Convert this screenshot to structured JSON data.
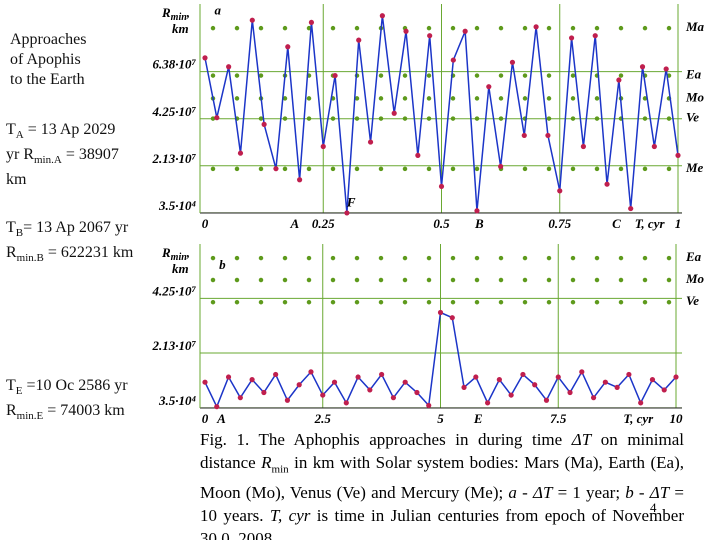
{
  "chart_data": [
    {
      "type": "line",
      "panel_label": "a",
      "y_label": [
        {
          "text": "R"
        },
        {
          "text": "min",
          "sub": true
        },
        {
          "text": ","
        }
      ],
      "y_unit": "km",
      "xlim": [
        0,
        1
      ],
      "ylim": [
        0,
        92500000.0
      ],
      "xticks": [
        0,
        0.25,
        0.5,
        0.75,
        1
      ],
      "yticks": [
        {
          "value": 35000.0,
          "label": "3.5·10⁴"
        },
        {
          "value": 21300000.0,
          "label": "2.13·10⁷"
        },
        {
          "value": 42500000.0,
          "label": "4.25·10⁷"
        },
        {
          "value": 63800000.0,
          "label": "6.38·10⁷"
        }
      ],
      "grid": true,
      "x": [
        0,
        0.025,
        0.05,
        0.075,
        0.1,
        0.125,
        0.15,
        0.175,
        0.2,
        0.225,
        0.25,
        0.275,
        0.3,
        0.325,
        0.35,
        0.375,
        0.4,
        0.425,
        0.45,
        0.475,
        0.5,
        0.525,
        0.55,
        0.575,
        0.6,
        0.625,
        0.65,
        0.675,
        0.7,
        0.725,
        0.75,
        0.775,
        0.8,
        0.825,
        0.85,
        0.875,
        0.9,
        0.925,
        0.95,
        0.975,
        1
      ],
      "series": [
        {
          "color": "#1c35c8",
          "marker_color": "#c01f4e",
          "values": [
            70000000.0,
            43000000.0,
            66000000.0,
            27000000.0,
            87000000.0,
            40000000.0,
            20000000.0,
            75000000.0,
            15000000.0,
            86000000.0,
            30000000.0,
            62000000.0,
            35000.0,
            78000000.0,
            32000000.0,
            89000000.0,
            45000000.0,
            82000000.0,
            26000000.0,
            80000000.0,
            12000000.0,
            69000000.0,
            82000000.0,
            1000000.0,
            57000000.0,
            21000000.0,
            68000000.0,
            35000000.0,
            84000000.0,
            35000000.0,
            10000000.0,
            79000000.0,
            30000000.0,
            80000000.0,
            13000000.0,
            60000000.0,
            2000000.0,
            66000000.0,
            30000000.0,
            65000000.0,
            26000000.0
          ]
        }
      ],
      "reference_lines": [
        {
          "name": "Ma",
          "value": 83400000.0,
          "color": "#5e9a1c"
        },
        {
          "name": "Ea",
          "value": 62000000.0,
          "color": "#5e9a1c"
        },
        {
          "name": "Mo",
          "value": 51700000.0,
          "color": "#5e9a1c"
        },
        {
          "name": "Ve",
          "value": 42600000.0,
          "color": "#5e9a1c"
        },
        {
          "name": "Me",
          "value": 19900000.0,
          "color": "#5e9a1c"
        }
      ],
      "x_annotations": [
        {
          "text": "A",
          "x": 0.19
        },
        {
          "text": "B",
          "x": 0.58
        },
        {
          "text": "C",
          "x": 0.87
        },
        {
          "text": "T, cyr",
          "x": 0.94
        }
      ],
      "annotations": [
        {
          "text": "a",
          "x": 0.02,
          "y": 89000000.0
        },
        {
          "text": "F",
          "x": 0.3,
          "y": 2500000.0
        }
      ]
    },
    {
      "type": "line",
      "panel_label": "b",
      "y_label": [
        {
          "text": "R"
        },
        {
          "text": "min",
          "sub": true
        },
        {
          "text": ","
        }
      ],
      "y_unit": "km",
      "xlim": [
        0,
        10
      ],
      "ylim": [
        0,
        62000000.0
      ],
      "xticks": [
        0,
        2.5,
        5,
        7.5,
        10
      ],
      "yticks": [
        {
          "value": 35000.0,
          "label": "3.5·10⁴"
        },
        {
          "value": 21300000.0,
          "label": "2.13·10⁷"
        },
        {
          "value": 42500000.0,
          "label": "4.25·10⁷"
        }
      ],
      "grid": true,
      "x": [
        0,
        0.25,
        0.5,
        0.75,
        1,
        1.25,
        1.5,
        1.75,
        2,
        2.25,
        2.5,
        2.75,
        3,
        3.25,
        3.5,
        3.75,
        4,
        4.25,
        4.5,
        4.75,
        5,
        5.25,
        5.5,
        5.75,
        6,
        6.25,
        6.5,
        6.75,
        7,
        7.25,
        7.5,
        7.75,
        8,
        8.25,
        8.5,
        8.75,
        9,
        9.25,
        9.5,
        9.75,
        10
      ],
      "series": [
        {
          "color": "#1c35c8",
          "marker_color": "#c01f4e",
          "values": [
            10000000.0,
            500000.0,
            12000000.0,
            4000000.0,
            11000000.0,
            6000000.0,
            13000000.0,
            3000000.0,
            9000000.0,
            14000000.0,
            5000000.0,
            10000000.0,
            2000000.0,
            12000000.0,
            7000000.0,
            13000000.0,
            4000000.0,
            10000000.0,
            6000000.0,
            1000000.0,
            37000000.0,
            35000000.0,
            8000000.0,
            12000000.0,
            2000000.0,
            11000000.0,
            5000000.0,
            13000000.0,
            9000000.0,
            3000000.0,
            12000000.0,
            6000000.0,
            14000000.0,
            4000000.0,
            10000000.0,
            8000000.0,
            13000000.0,
            2000000.0,
            11000000.0,
            7000000.0,
            12000000.0
          ]
        }
      ],
      "reference_lines": [
        {
          "name": "Ea",
          "value": 58100000.0,
          "color": "#5e9a1c"
        },
        {
          "name": "Mo",
          "value": 49600000.0,
          "color": "#5e9a1c"
        },
        {
          "name": "Ve",
          "value": 41000000.0,
          "color": "#5e9a1c"
        }
      ],
      "x_annotations": [
        {
          "text": "A",
          "x": 0.35
        },
        {
          "text": "E",
          "x": 5.8
        },
        {
          "text": "T, cyr",
          "x": 9.2
        }
      ],
      "annotations": [
        {
          "text": "b",
          "x": 0.3,
          "y": 53500000.0
        }
      ]
    }
  ],
  "notes": [
    {
      "lines": [
        [
          {
            "text": "Approaches"
          }
        ],
        [
          {
            "text": "of  Apophis"
          }
        ],
        [
          {
            "text": "to the Earth"
          }
        ]
      ]
    },
    {
      "lines": [
        [
          {
            "text": "T"
          },
          {
            "text": "A",
            "sub": true
          },
          {
            "text": " = 13 Ap 2029"
          }
        ],
        [
          {
            "text": "yr "
          },
          {
            "text": "R"
          },
          {
            "text": "min.A",
            "sub": true
          },
          {
            "text": " = 38907"
          }
        ],
        [
          {
            "text": "km"
          }
        ]
      ]
    },
    {
      "lines": [
        [
          {
            "text": "T"
          },
          {
            "text": "B",
            "sub": true
          },
          {
            "text": "= 13 Ap 2067 yr"
          }
        ],
        [
          {
            "text": "R"
          },
          {
            "text": "min.B",
            "sub": true
          },
          {
            "text": " = 622231 km"
          }
        ]
      ]
    },
    {
      "lines": [
        [
          {
            "text": "T"
          },
          {
            "text": "E",
            "sub": true
          },
          {
            "text": " =10 Oc 2586 yr"
          }
        ],
        [
          {
            "text": "R"
          },
          {
            "text": "min.E",
            "sub": true
          },
          {
            "text": " = 74003 km"
          }
        ]
      ]
    }
  ],
  "caption": [
    {
      "text": "Fig. 1. The Aphophis approaches in during time "
    },
    {
      "text": "ΔT",
      "italic": true
    },
    {
      "text": " on minimal distance "
    },
    {
      "text": "R",
      "italic": true
    },
    {
      "text": "min",
      "sub": true
    },
    {
      "text": " in km with Solar system bodies: Mars (Ma), Earth (Ea), Moon (Mo), Venus (Ve) and Mercury (Me); "
    },
    {
      "text": "a",
      "italic": true
    },
    {
      "text": " - "
    },
    {
      "text": "ΔT",
      "italic": true
    },
    {
      "text": " = 1 year; "
    },
    {
      "text": "b",
      "italic": true
    },
    {
      "text": " - "
    },
    {
      "text": "ΔT",
      "italic": true
    },
    {
      "text": " = 10 years. "
    },
    {
      "text": "T, cyr",
      "italic": true
    },
    {
      "text": " is time in Julian centuries from epoch of November 30.0, 2008"
    }
  ],
  "page_number": "4"
}
